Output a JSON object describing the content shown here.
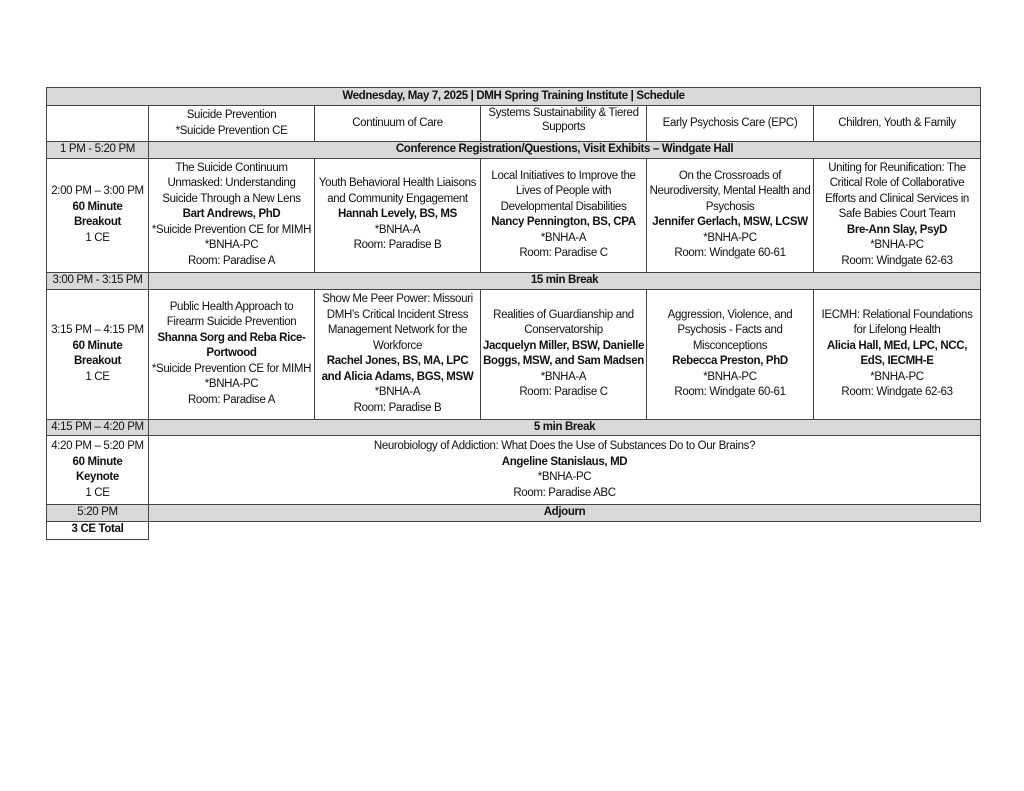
{
  "title": "Wednesday, May 7, 2025 | DMH Spring Training Institute | Schedule",
  "tracks": [
    {
      "line1": "Suicide Prevention",
      "line2": "*Suicide Prevention CE"
    },
    {
      "line1": "Continuum of Care",
      "line2": ""
    },
    {
      "line1": "Systems Sustainability & Tiered Supports",
      "line2": ""
    },
    {
      "line1": "Early Psychosis Care (EPC)",
      "line2": ""
    },
    {
      "line1": "Children, Youth & Family",
      "line2": ""
    }
  ],
  "registration": {
    "time": "1 PM - 5:20 PM",
    "label": "Conference Registration/Questions, Visit Exhibits – Windgate Hall"
  },
  "breakout1": {
    "time": "2:00 PM – 3:00 PM",
    "type": "60 Minute Breakout",
    "ce": "1 CE",
    "sessions": [
      {
        "title": "The Suicide Continuum Unmasked: Understanding Suicide Through a New Lens",
        "presenter": "Bart Andrews, PhD",
        "credit": "*Suicide Prevention CE for MIMH *BNHA-PC",
        "room": "Room: Paradise A"
      },
      {
        "title": "Youth Behavioral Health Liaisons and Community Engagement",
        "presenter": "Hannah Levely, BS, MS",
        "credit": "*BNHA-A",
        "room": "Room: Paradise B"
      },
      {
        "title": "Local Initiatives to Improve the Lives of People with Developmental Disabilities",
        "presenter": "Nancy Pennington, BS, CPA",
        "credit": "*BNHA-A",
        "room": "Room: Paradise C"
      },
      {
        "title": "On the Crossroads of Neurodiversity, Mental Health and Psychosis",
        "presenter": "Jennifer Gerlach, MSW, LCSW",
        "credit": "*BNHA-PC",
        "room": "Room: Windgate 60-61"
      },
      {
        "title": "Uniting for Reunification: The Critical Role of Collaborative Efforts and Clinical Services in Safe Babies Court Team",
        "presenter": "Bre-Ann Slay, PsyD",
        "credit": "*BNHA-PC",
        "room": "Room: Windgate 62-63"
      }
    ]
  },
  "break1": {
    "time": "3:00 PM - 3:15 PM",
    "label": "15 min Break"
  },
  "breakout2": {
    "time": "3:15 PM – 4:15 PM",
    "type": "60 Minute Breakout",
    "ce": "1 CE",
    "sessions": [
      {
        "title": "Public Health Approach to Firearm Suicide Prevention",
        "presenter": "Shanna Sorg and Reba Rice-Portwood",
        "credit": "*Suicide Prevention CE for MIMH *BNHA-PC",
        "room": "Room: Paradise A"
      },
      {
        "title": "Show Me Peer Power: Missouri DMH’s Critical Incident Stress Management Network for the Workforce",
        "presenter": "Rachel Jones, BS, MA, LPC and Alicia Adams, BGS, MSW",
        "credit": "*BNHA-A",
        "room": "Room: Paradise B"
      },
      {
        "title": "Realities of Guardianship and Conservatorship",
        "presenter": "Jacquelyn Miller, BSW, Danielle Boggs, MSW, and Sam Madsen",
        "credit": "*BNHA-A",
        "room": "Room: Paradise C"
      },
      {
        "title": "Aggression, Violence, and Psychosis - Facts and Misconceptions",
        "presenter": "Rebecca Preston, PhD",
        "credit": "*BNHA-PC",
        "room": "Room: Windgate 60-61"
      },
      {
        "title": "IECMH: Relational Foundations for Lifelong Health",
        "presenter": "Alicia Hall, MEd, LPC, NCC, EdS, IECMH-E",
        "credit": "*BNHA-PC",
        "room": "Room: Windgate 62-63"
      }
    ]
  },
  "break2": {
    "time": "4:15 PM – 4:20 PM",
    "label": "5 min Break"
  },
  "keynote": {
    "time": "4:20 PM – 5:20 PM",
    "type1": "60 Minute",
    "type2": "Keynote",
    "ce": "1 CE",
    "title": "Neurobiology of Addiction: What Does the Use of Substances Do to Our Brains?",
    "presenter": "Angeline Stanislaus, MD",
    "credit": "*BNHA-PC",
    "room": "Room: Paradise ABC"
  },
  "adjourn": {
    "time": "5:20 PM",
    "label": "Adjourn"
  },
  "total": "3 CE Total",
  "colors": {
    "shade": "#d9d9d9",
    "border": "#444444"
  }
}
